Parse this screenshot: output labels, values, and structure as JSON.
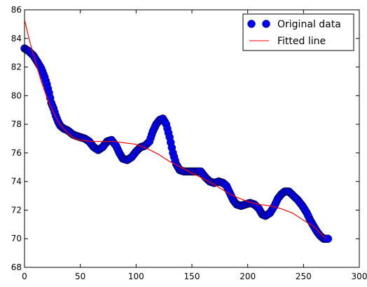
{
  "chart_data": {
    "type": "scatter",
    "title": "",
    "xlabel": "",
    "ylabel": "",
    "xlim": [
      0,
      300
    ],
    "ylim": [
      68,
      86
    ],
    "xticks": [
      0,
      50,
      100,
      150,
      200,
      250,
      300
    ],
    "yticks": [
      68,
      70,
      72,
      74,
      76,
      78,
      80,
      82,
      84,
      86
    ],
    "grid": false,
    "legend_position": "top-right",
    "series": [
      {
        "name": "Original data",
        "kind": "markers",
        "color": "#0000ff",
        "points": [
          [
            0,
            83.3
          ],
          [
            4,
            83.1
          ],
          [
            8,
            82.8
          ],
          [
            12,
            82.3
          ],
          [
            15,
            81.9
          ],
          [
            18,
            81.3
          ],
          [
            20,
            80.8
          ],
          [
            22,
            80.2
          ],
          [
            24,
            79.5
          ],
          [
            26,
            79.1
          ],
          [
            28,
            78.6
          ],
          [
            30,
            78.2
          ],
          [
            32,
            77.9
          ],
          [
            35,
            77.7
          ],
          [
            38,
            77.6
          ],
          [
            40,
            77.5
          ],
          [
            43,
            77.3
          ],
          [
            46,
            77.2
          ],
          [
            50,
            77.1
          ],
          [
            54,
            77.0
          ],
          [
            58,
            76.8
          ],
          [
            62,
            76.4
          ],
          [
            66,
            76.2
          ],
          [
            70,
            76.4
          ],
          [
            74,
            76.8
          ],
          [
            78,
            76.9
          ],
          [
            82,
            76.5
          ],
          [
            85,
            76.0
          ],
          [
            88,
            75.6
          ],
          [
            92,
            75.5
          ],
          [
            96,
            75.7
          ],
          [
            100,
            76.1
          ],
          [
            104,
            76.4
          ],
          [
            108,
            76.5
          ],
          [
            112,
            76.8
          ],
          [
            115,
            77.5
          ],
          [
            118,
            78.0
          ],
          [
            121,
            78.3
          ],
          [
            124,
            78.4
          ],
          [
            127,
            78.0
          ],
          [
            130,
            77.1
          ],
          [
            133,
            76.0
          ],
          [
            136,
            75.2
          ],
          [
            139,
            74.8
          ],
          [
            143,
            74.7
          ],
          [
            148,
            74.7
          ],
          [
            153,
            74.7
          ],
          [
            158,
            74.7
          ],
          [
            162,
            74.3
          ],
          [
            166,
            74.0
          ],
          [
            170,
            73.9
          ],
          [
            174,
            74.0
          ],
          [
            178,
            73.9
          ],
          [
            181,
            73.7
          ],
          [
            184,
            73.2
          ],
          [
            187,
            72.7
          ],
          [
            190,
            72.4
          ],
          [
            194,
            72.3
          ],
          [
            198,
            72.4
          ],
          [
            202,
            72.5
          ],
          [
            206,
            72.4
          ],
          [
            210,
            72.1
          ],
          [
            213,
            71.7
          ],
          [
            216,
            71.6
          ],
          [
            220,
            71.8
          ],
          [
            224,
            72.3
          ],
          [
            227,
            72.8
          ],
          [
            230,
            73.1
          ],
          [
            233,
            73.3
          ],
          [
            237,
            73.3
          ],
          [
            241,
            73.0
          ],
          [
            245,
            72.7
          ],
          [
            249,
            72.3
          ],
          [
            253,
            71.8
          ],
          [
            256,
            71.3
          ],
          [
            259,
            70.9
          ],
          [
            262,
            70.5
          ],
          [
            265,
            70.2
          ],
          [
            268,
            70.0
          ],
          [
            272,
            70.0
          ]
        ]
      },
      {
        "name": "Fitted line",
        "kind": "line",
        "color": "#ff0000",
        "points": [
          [
            0,
            85.3
          ],
          [
            5,
            83.7
          ],
          [
            10,
            82.3
          ],
          [
            15,
            81.0
          ],
          [
            20,
            79.9
          ],
          [
            25,
            79.0
          ],
          [
            30,
            78.2
          ],
          [
            35,
            77.7
          ],
          [
            40,
            77.3
          ],
          [
            45,
            77.0
          ],
          [
            50,
            76.9
          ],
          [
            60,
            76.8
          ],
          [
            70,
            76.8
          ],
          [
            80,
            76.8
          ],
          [
            90,
            76.7
          ],
          [
            100,
            76.6
          ],
          [
            110,
            76.3
          ],
          [
            120,
            75.9
          ],
          [
            130,
            75.4
          ],
          [
            140,
            75.0
          ],
          [
            150,
            74.6
          ],
          [
            160,
            74.2
          ],
          [
            170,
            73.8
          ],
          [
            180,
            73.3
          ],
          [
            190,
            72.9
          ],
          [
            200,
            72.6
          ],
          [
            210,
            72.4
          ],
          [
            220,
            72.3
          ],
          [
            230,
            72.1
          ],
          [
            240,
            71.8
          ],
          [
            250,
            71.3
          ],
          [
            260,
            70.8
          ],
          [
            270,
            70.0
          ]
        ]
      }
    ]
  }
}
